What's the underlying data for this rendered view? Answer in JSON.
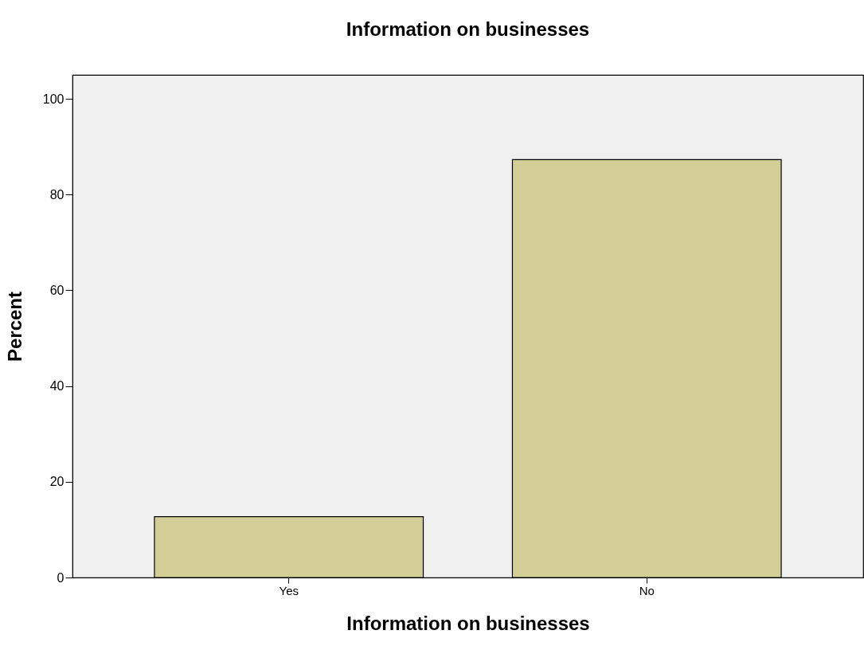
{
  "chart_data": {
    "type": "bar",
    "title": "Information on businesses",
    "xlabel": "Information on businesses",
    "ylabel": "Percent",
    "categories": [
      "Yes",
      "No"
    ],
    "values": [
      12.7,
      87.3
    ],
    "color": "#d3ce97",
    "ylim": [
      0,
      105
    ],
    "yticks": [
      0,
      20,
      40,
      60,
      80,
      100
    ],
    "grid": false
  }
}
